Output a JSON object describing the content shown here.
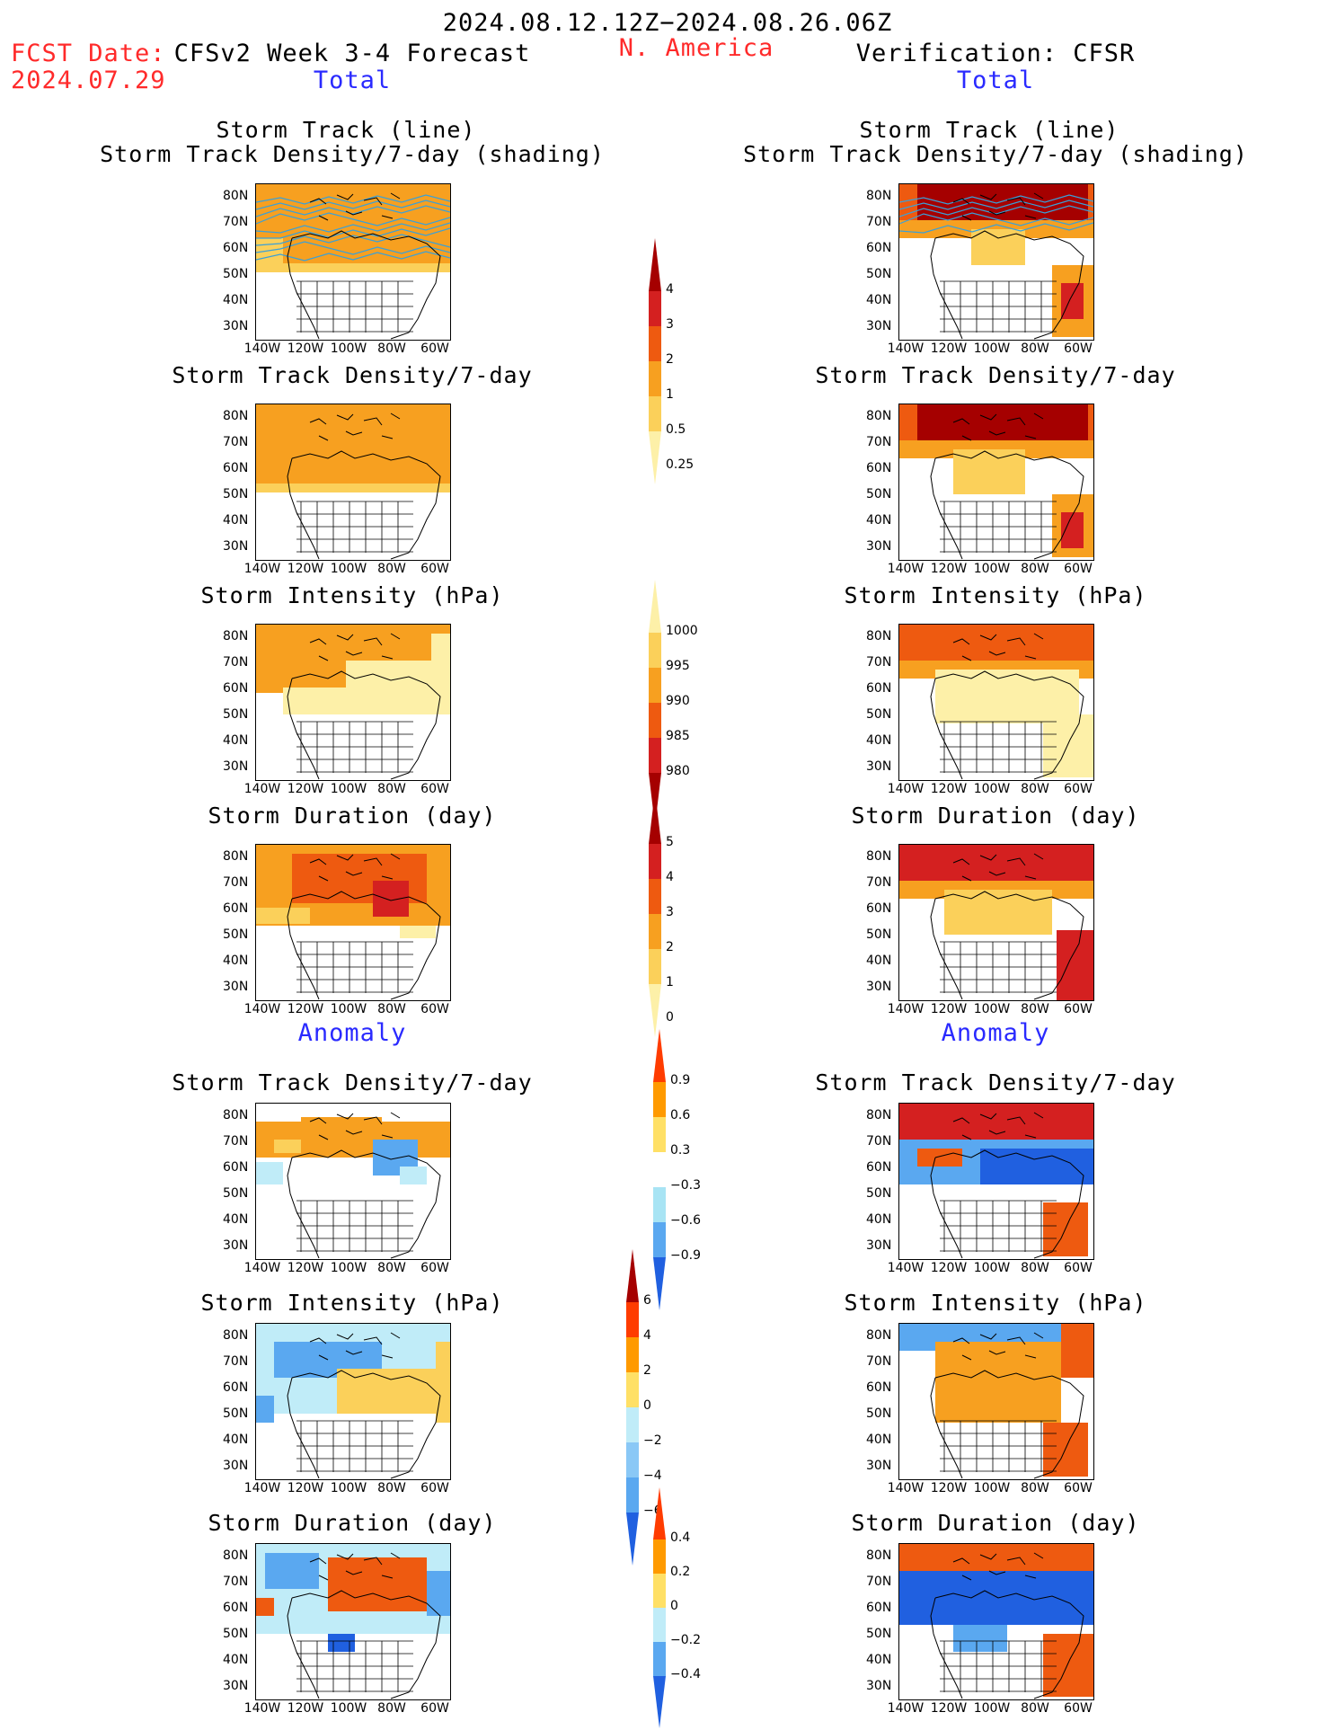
{
  "header": {
    "period": "2024.08.12.12Z−2024.08.26.06Z",
    "fcst_label": "FCST Date:",
    "fcst_date": "2024.07.29",
    "model": "CFSv2 Week 3-4 Forecast",
    "region": "N. America",
    "verification": "Verification: CFSR",
    "left_total": "Total",
    "right_total": "Total",
    "left_anomaly": "Anomaly",
    "right_anomaly": "Anomaly"
  },
  "panel_titles": {
    "track_line": "Storm Track (line)",
    "track_shading": "Storm Track Density/7-day (shading)",
    "density": "Storm Track Density/7-day",
    "intensity": "Storm Intensity (hPa)",
    "duration": "Storm Duration (day)"
  },
  "axes": {
    "lat_ticks": [
      "80N",
      "70N",
      "60N",
      "50N",
      "40N",
      "30N"
    ],
    "lon_ticks": [
      "140W",
      "120W",
      "100W",
      "80W",
      "60W"
    ]
  },
  "colorbars": {
    "density_total": {
      "labels": [
        "4",
        "3",
        "2",
        "1",
        "0.5",
        "0.25"
      ],
      "colors": [
        "#a50000",
        "#d42020",
        "#ee5a10",
        "#f7a020",
        "#fbd05a",
        "#fdf0a8"
      ]
    },
    "intensity_total": {
      "labels": [
        "1000",
        "995",
        "990",
        "985",
        "980"
      ],
      "colors": [
        "#fdf0a8",
        "#fbd05a",
        "#f7a020",
        "#ee5a10",
        "#d42020",
        "#a50000"
      ]
    },
    "duration_total": {
      "labels": [
        "5",
        "4",
        "3",
        "2",
        "1",
        "0"
      ],
      "colors": [
        "#a50000",
        "#d42020",
        "#ee5a10",
        "#f7a020",
        "#fbd05a",
        "#fdf0a8"
      ]
    },
    "density_anom": {
      "labels": [
        "0.9",
        "0.6",
        "0.3",
        "−0.3",
        "−0.6",
        "−0.9"
      ],
      "colors": [
        "#ff3c00",
        "#ff9a00",
        "#ffe066",
        "#ffffff",
        "#a8e4f4",
        "#5aa8f0",
        "#2060e0"
      ]
    },
    "intensity_anom": {
      "labels": [
        "6",
        "4",
        "2",
        "0",
        "−2",
        "−4",
        "−6"
      ],
      "colors": [
        "#a50000",
        "#ff3c00",
        "#ff9a00",
        "#ffe066",
        "#c0ecf8",
        "#8ac8f6",
        "#5aa8f0",
        "#2060e0"
      ]
    },
    "duration_anom": {
      "labels": [
        "0.4",
        "0.2",
        "0",
        "−0.2",
        "−0.4"
      ],
      "colors": [
        "#ff3c00",
        "#ff9a00",
        "#ffe066",
        "#c0ecf8",
        "#5aa8f0",
        "#2060e0"
      ]
    }
  }
}
